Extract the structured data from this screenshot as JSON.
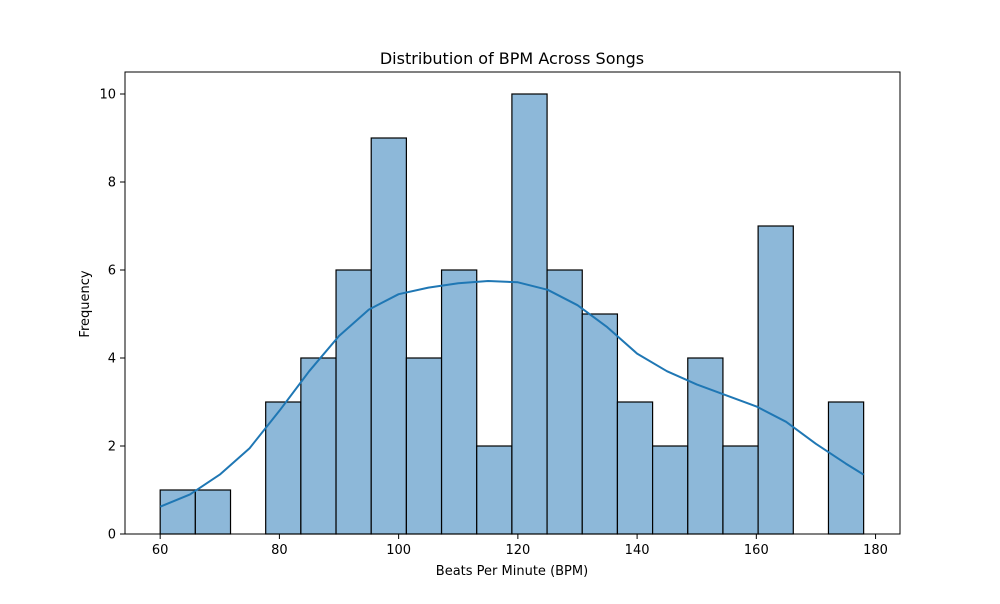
{
  "chart_data": {
    "type": "bar",
    "title": "Distribution of BPM Across Songs",
    "xlabel": "Beats Per Minute (BPM)",
    "ylabel": "Frequency",
    "xlim": [
      54.1,
      184.1
    ],
    "ylim": [
      0,
      10.5
    ],
    "xticks": [
      60,
      80,
      100,
      120,
      140,
      160,
      180
    ],
    "yticks": [
      0,
      2,
      4,
      6,
      8,
      10
    ],
    "grid": false,
    "legend": "none",
    "bins": {
      "edges": [
        60,
        65.9,
        71.8,
        77.7,
        83.6,
        89.5,
        95.4,
        101.3,
        107.2,
        113.1,
        119.0,
        124.9,
        130.8,
        136.7,
        142.6,
        148.5,
        154.4,
        160.3,
        166.2,
        172.1,
        178.0
      ],
      "counts": [
        1,
        1,
        0,
        3,
        4,
        6,
        9,
        4,
        6,
        2,
        10,
        6,
        5,
        3,
        2,
        4,
        2,
        7,
        0,
        3
      ]
    },
    "kde": {
      "x": [
        60,
        65,
        70,
        75,
        80,
        85,
        90,
        95,
        100,
        105,
        110,
        115,
        120,
        125,
        130,
        135,
        140,
        145,
        150,
        155,
        160,
        165,
        170,
        175,
        178
      ],
      "y": [
        0.62,
        0.9,
        1.35,
        1.95,
        2.8,
        3.7,
        4.5,
        5.1,
        5.45,
        5.6,
        5.7,
        5.75,
        5.72,
        5.55,
        5.2,
        4.7,
        4.1,
        3.7,
        3.4,
        3.15,
        2.9,
        2.55,
        2.05,
        1.6,
        1.35
      ]
    },
    "colors": {
      "bar_fill": "#8db8d9",
      "bar_edge": "#000000",
      "kde_line": "#1f77b4"
    }
  }
}
